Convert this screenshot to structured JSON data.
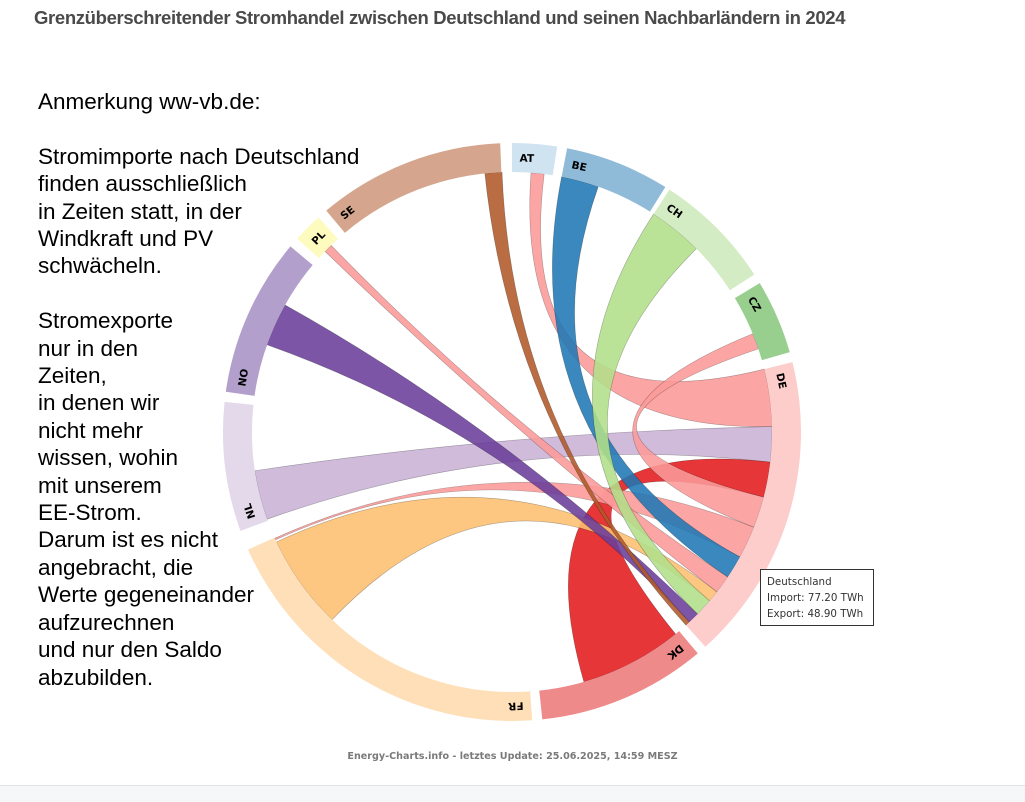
{
  "title": "Grenzüberschreitender Stromhandel zwischen Deutschland und seinen Nachbarländern in 2024",
  "annotation": {
    "heading": "Anmerkung ww-vb.de:",
    "paragraph1": [
      "Stromimporte nach Deutschland",
      "finden ausschließlich",
      "in Zeiten statt, in der",
      "Windkraft und PV",
      "schwächeln."
    ],
    "paragraph2": [
      "Stromexporte",
      "nur in den",
      "Zeiten,",
      "in denen wir",
      "nicht mehr",
      "wissen, wohin",
      "mit unserem",
      "EE-Strom.",
      "Darum ist es nicht",
      "angebracht, die",
      "Werte gegeneinander",
      "aufzurechnen",
      "und nur den Saldo",
      "abzubilden."
    ]
  },
  "tooltip": {
    "country": "Deutschland",
    "import_label": "Import: 77.20 TWh",
    "export_label": "Export: 48.90 TWh"
  },
  "footer": "Energy-Charts.info - letztes Update: 25.06.2025, 14:59 MESZ",
  "chart_data": {
    "type": "chord",
    "title": "Grenzüberschreitender Stromhandel zwischen Deutschland und seinen Nachbarländern in 2024",
    "unit": "TWh",
    "center_country": "DE",
    "de_totals": {
      "import": 77.2,
      "export": 48.9
    },
    "groups": [
      {
        "code": "AT",
        "value": 7.1,
        "arc_color": "#cfe3f1",
        "ribbon_color": "#a6cee3"
      },
      {
        "code": "BE",
        "value": 16.6,
        "arc_color": "#8fbbd9",
        "ribbon_color": "#1f78b4"
      },
      {
        "code": "CH",
        "value": 18.9,
        "arc_color": "#d4ecc3",
        "ribbon_color": "#b2df8a"
      },
      {
        "code": "CZ",
        "value": 11.8,
        "arc_color": "#98cf8e",
        "ribbon_color": "#33a02c"
      },
      {
        "code": "DE",
        "value": 48.9,
        "arc_color": "#fdcdcc",
        "ribbon_color": "#fb9a99"
      },
      {
        "code": "DK",
        "value": 26.8,
        "arc_color": "#ef8a8b",
        "ribbon_color": "#e31a1c"
      },
      {
        "code": "FR",
        "value": 55.2,
        "arc_color": "#fedfb7",
        "ribbon_color": "#fdbf6f"
      },
      {
        "code": "NL",
        "value": 20.5,
        "arc_color": "#e4d9ea",
        "ribbon_color": "#cab2d6"
      },
      {
        "code": "NO",
        "value": 25.2,
        "arc_color": "#b39fcc",
        "ribbon_color": "#6a3d9a"
      },
      {
        "code": "PL",
        "value": 4.7,
        "arc_color": "#fdfbbd",
        "ribbon_color": "#ffff99"
      },
      {
        "code": "SE",
        "value": 29.7,
        "arc_color": "#d5a68d",
        "ribbon_color": "#b15928"
      }
    ],
    "flows": [
      {
        "country": "AT",
        "import_to_de": 2.3,
        "export_from_de": 10.1,
        "color_from": "DE"
      },
      {
        "country": "NL",
        "import_to_de": 8.7,
        "export_from_de": 6.2,
        "color_from": "NL"
      },
      {
        "country": "DK",
        "import_to_de": 18.1,
        "export_from_de": 6.2,
        "color_from": "DK"
      },
      {
        "country": "CZ",
        "import_to_de": 2.8,
        "export_from_de": 5.5,
        "color_from": "DE"
      },
      {
        "country": "FR",
        "import_to_de": 0.3,
        "export_from_de": 5.7,
        "color_from": "DE"
      },
      {
        "country": "BE",
        "import_to_de": 6.6,
        "export_from_de": 4.1,
        "color_from": "BE"
      },
      {
        "country": "PL",
        "import_to_de": 1.5,
        "export_from_de": 3.2,
        "color_from": "DE"
      },
      {
        "country": "FR",
        "import_to_de": 16.7,
        "export_from_de": 2.0,
        "color_from": "FR"
      },
      {
        "country": "CH",
        "import_to_de": 9.6,
        "export_from_de": 3.1,
        "color_from": "CH"
      },
      {
        "country": "NO",
        "import_to_de": 7.6,
        "export_from_de": 2.0,
        "color_from": "NO"
      },
      {
        "country": "SE",
        "import_to_de": 3.0,
        "export_from_de": 0.8,
        "color_from": "SE"
      }
    ]
  }
}
